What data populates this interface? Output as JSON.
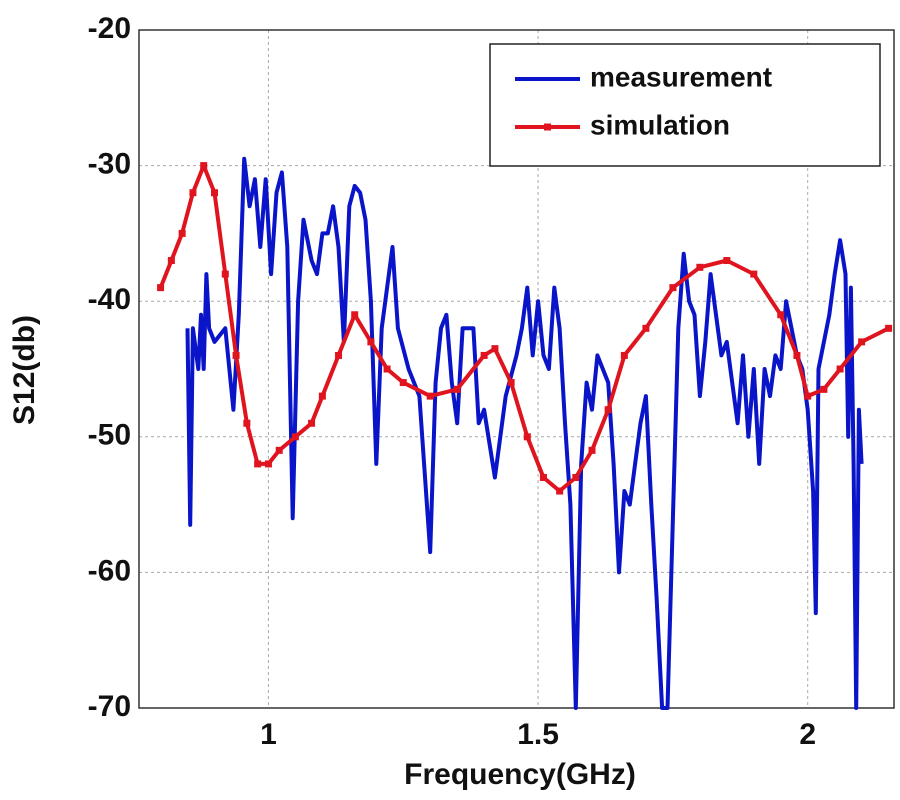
{
  "chart_data": {
    "type": "line",
    "xlabel": "Frequency(GHz)",
    "ylabel": "S12(db)",
    "xlim": [
      0.76,
      2.16
    ],
    "ylim": [
      -70,
      -20
    ],
    "xticks": [
      1,
      1.5,
      2
    ],
    "yticks": [
      -70,
      -60,
      -50,
      -40,
      -30,
      -20
    ],
    "grid": true,
    "legend": "upper right",
    "series": [
      {
        "name": "measurement",
        "color": "#0a14c8",
        "marker": false,
        "x": [
          0.85,
          0.855,
          0.86,
          0.87,
          0.875,
          0.88,
          0.885,
          0.89,
          0.9,
          0.92,
          0.935,
          0.945,
          0.955,
          0.965,
          0.975,
          0.985,
          0.995,
          1.005,
          1.015,
          1.025,
          1.035,
          1.045,
          1.055,
          1.065,
          1.08,
          1.09,
          1.1,
          1.11,
          1.12,
          1.13,
          1.14,
          1.15,
          1.16,
          1.17,
          1.18,
          1.19,
          1.2,
          1.21,
          1.22,
          1.23,
          1.24,
          1.26,
          1.28,
          1.3,
          1.31,
          1.32,
          1.33,
          1.34,
          1.35,
          1.36,
          1.38,
          1.39,
          1.4,
          1.42,
          1.44,
          1.46,
          1.47,
          1.48,
          1.49,
          1.5,
          1.51,
          1.52,
          1.53,
          1.54,
          1.55,
          1.56,
          1.57,
          1.58,
          1.59,
          1.6,
          1.61,
          1.63,
          1.64,
          1.65,
          1.66,
          1.67,
          1.68,
          1.69,
          1.7,
          1.71,
          1.72,
          1.73,
          1.74,
          1.75,
          1.76,
          1.77,
          1.78,
          1.79,
          1.8,
          1.81,
          1.82,
          1.83,
          1.84,
          1.85,
          1.86,
          1.87,
          1.88,
          1.89,
          1.9,
          1.91,
          1.92,
          1.93,
          1.94,
          1.95,
          1.96,
          1.97,
          1.98,
          1.99,
          2.0,
          2.01,
          2.015,
          2.02,
          2.04,
          2.05,
          2.06,
          2.07,
          2.075,
          2.08,
          2.085,
          2.09,
          2.095,
          2.1
        ],
        "values": [
          -42,
          -56.5,
          -42,
          -45,
          -41,
          -45,
          -38,
          -42,
          -43,
          -42,
          -48,
          -41,
          -29.5,
          -33,
          -31,
          -36,
          -31,
          -38,
          -32,
          -30.5,
          -36,
          -56,
          -40,
          -34,
          -37,
          -38,
          -35,
          -35,
          -33,
          -36,
          -43,
          -33,
          -31.5,
          -32,
          -34,
          -40,
          -52,
          -42,
          -39,
          -36,
          -42,
          -45,
          -47,
          -58.5,
          -46,
          -42,
          -41,
          -46,
          -49,
          -42,
          -42,
          -49,
          -48,
          -53,
          -47,
          -44,
          -42,
          -39,
          -44,
          -40,
          -44,
          -45,
          -39,
          -42,
          -49,
          -55,
          -70,
          -52,
          -46,
          -48,
          -44,
          -46,
          -52,
          -60,
          -54,
          -55,
          -52,
          -49,
          -47,
          -55,
          -62,
          -70,
          -70,
          -56,
          -42,
          -36.5,
          -40,
          -41,
          -47,
          -43,
          -38,
          -41,
          -44,
          -43,
          -46,
          -49,
          -44,
          -50,
          -45,
          -52,
          -45,
          -47,
          -44,
          -45,
          -40,
          -42,
          -44,
          -45,
          -48,
          -54,
          -63,
          -45,
          -41,
          -38,
          -35.5,
          -38,
          -50,
          -39,
          -52,
          -70,
          -48,
          -52
        ]
      },
      {
        "name": "simulation",
        "color": "#e0141e",
        "marker": true,
        "x": [
          0.8,
          0.82,
          0.84,
          0.86,
          0.88,
          0.9,
          0.92,
          0.94,
          0.96,
          0.98,
          1.0,
          1.02,
          1.05,
          1.08,
          1.1,
          1.13,
          1.16,
          1.19,
          1.22,
          1.25,
          1.3,
          1.35,
          1.4,
          1.42,
          1.45,
          1.48,
          1.51,
          1.54,
          1.57,
          1.6,
          1.63,
          1.66,
          1.7,
          1.75,
          1.8,
          1.85,
          1.9,
          1.95,
          1.98,
          2.0,
          2.03,
          2.06,
          2.1,
          2.15
        ],
        "values": [
          -39,
          -37,
          -35,
          -32,
          -30,
          -32,
          -38,
          -44,
          -49,
          -52,
          -52,
          -51,
          -50,
          -49,
          -47,
          -44,
          -41,
          -43,
          -45,
          -46,
          -47,
          -46.5,
          -44,
          -43.5,
          -46,
          -50,
          -53,
          -54,
          -53,
          -51,
          -48,
          -44,
          -42,
          -39,
          -37.5,
          -37,
          -38,
          -41,
          -44,
          -47,
          -46.5,
          -45,
          -43,
          -42
        ]
      }
    ]
  }
}
